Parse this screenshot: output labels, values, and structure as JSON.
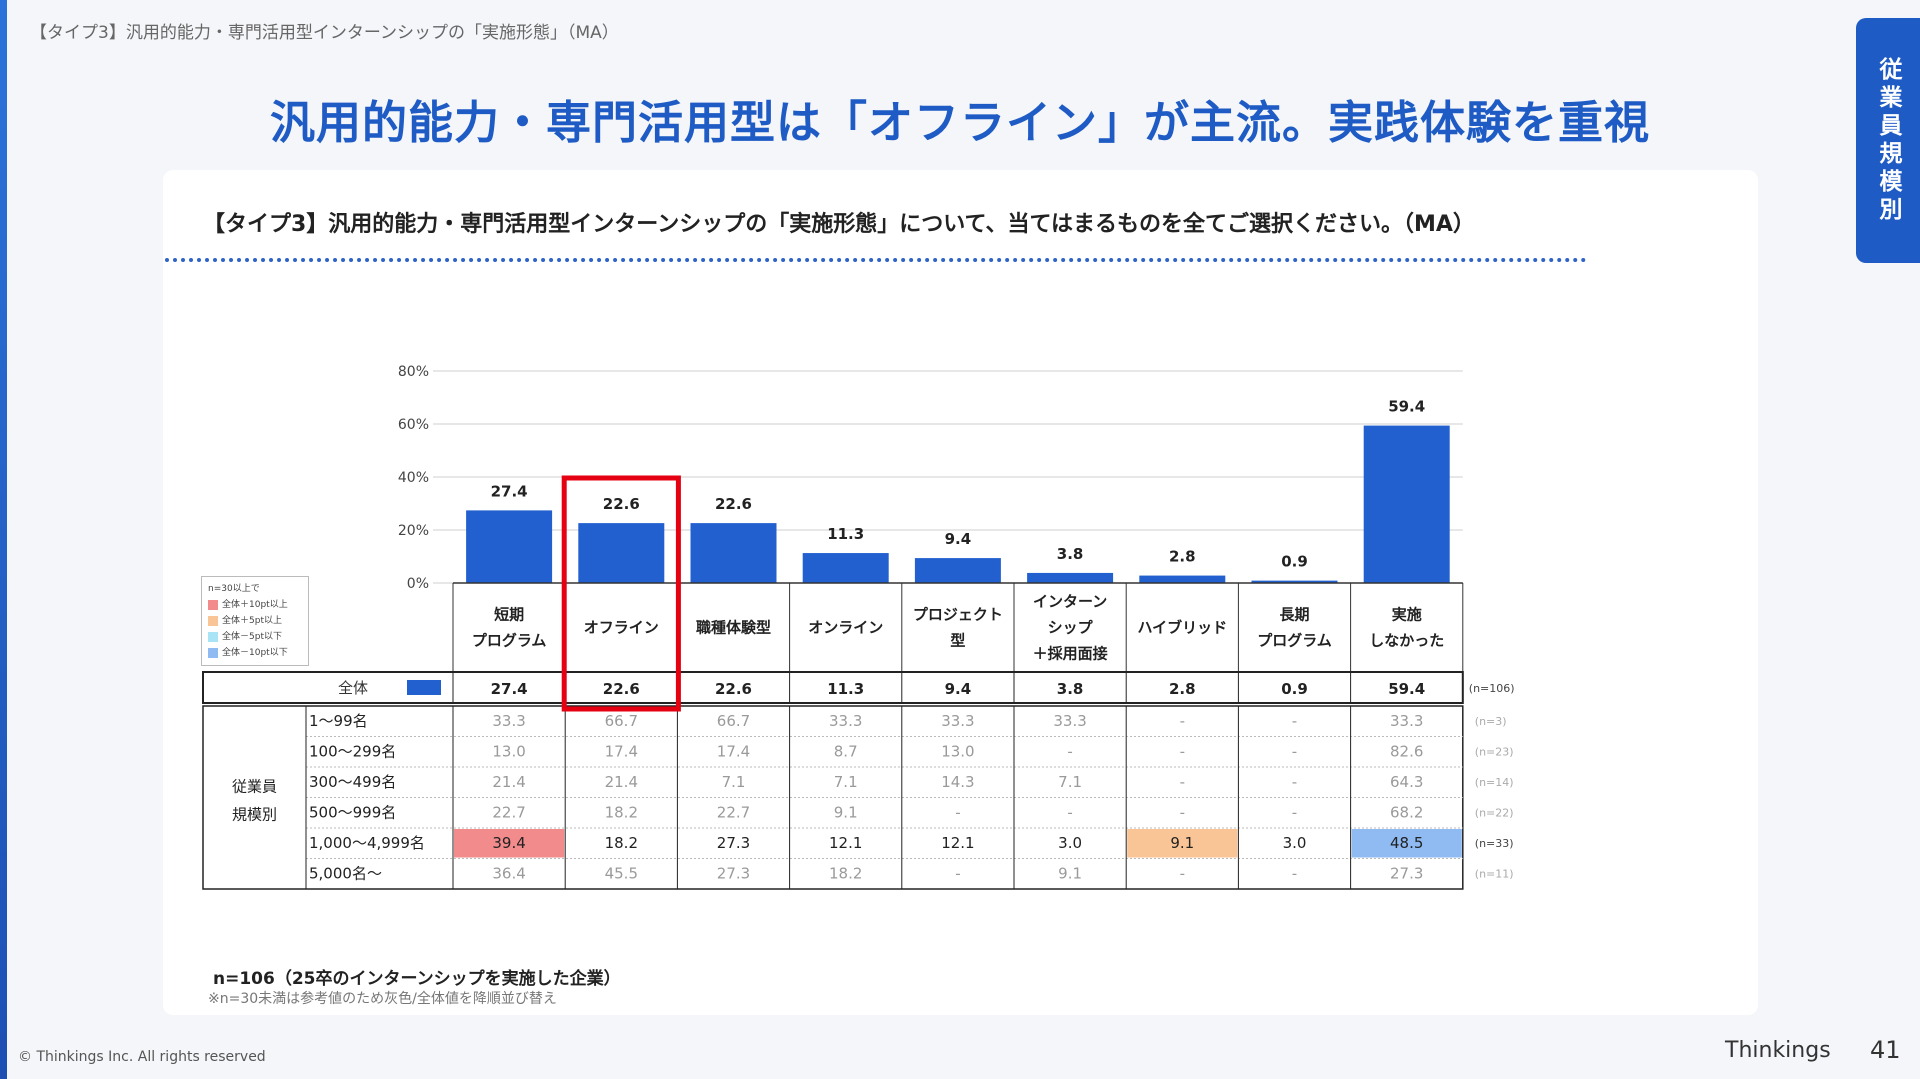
{
  "breadcrumb": "【タイプ3】汎用的能力・専門活用型インターンシップの「実施形態」（MA）",
  "headline": "汎用的能力・専門活用型は「オフライン」が主流。実践体験を重視",
  "side_tab": "従業員規模別",
  "question": "【タイプ3】汎用的能力・専門活用型インターンシップの「実施形態」について、当てはまるものを全てご選択ください。（MA）",
  "legend": {
    "title": "n=30以上で",
    "items": [
      {
        "label": "全体＋10pt以上",
        "color": "#f28b8b"
      },
      {
        "label": "全体＋5pt以上",
        "color": "#f9c596"
      },
      {
        "label": "全体－5pt以下",
        "color": "#a8e4f5"
      },
      {
        "label": "全体－10pt以下",
        "color": "#8fbaf2"
      }
    ]
  },
  "chart_data": {
    "type": "bar",
    "categories": [
      [
        "短期",
        "プログラム"
      ],
      [
        "オフライン"
      ],
      [
        "職種体験型"
      ],
      [
        "オンライン"
      ],
      [
        "プロジェクト",
        "型"
      ],
      [
        "インターン",
        "シップ",
        "＋採用面接"
      ],
      [
        "ハイブリッド"
      ],
      [
        "長期",
        "プログラム"
      ],
      [
        "実施",
        "しなかった"
      ]
    ],
    "values": [
      27.4,
      22.6,
      22.6,
      11.3,
      9.4,
      3.8,
      2.8,
      0.9,
      59.4
    ],
    "value_labels": [
      "27.4",
      "22.6",
      "22.6",
      "11.3",
      "9.4",
      "3.8",
      "2.8",
      "0.9",
      "59.4"
    ],
    "y_ticks": [
      "0%",
      "20%",
      "40%",
      "60%",
      "80%"
    ],
    "ylim": [
      0,
      80
    ],
    "grid": true,
    "bar_color": "#2260cf",
    "highlight_index": 1,
    "highlight_color": "#e50012"
  },
  "table": {
    "total_row": {
      "label": "全体",
      "values": [
        "27.4",
        "22.6",
        "22.6",
        "11.3",
        "9.4",
        "3.8",
        "2.8",
        "0.9",
        "59.4"
      ],
      "n": "(n=106)"
    },
    "group_label": [
      "従業員",
      "規模別"
    ],
    "rows": [
      {
        "label": "1～99名",
        "n": "(n=3)",
        "ref": true,
        "cells": [
          {
            "v": "33.3"
          },
          {
            "v": "66.7"
          },
          {
            "v": "66.7"
          },
          {
            "v": "33.3"
          },
          {
            "v": "33.3"
          },
          {
            "v": "33.3"
          },
          {
            "v": "-"
          },
          {
            "v": "-"
          },
          {
            "v": "33.3"
          }
        ]
      },
      {
        "label": "100～299名",
        "n": "(n=23)",
        "ref": true,
        "cells": [
          {
            "v": "13.0"
          },
          {
            "v": "17.4"
          },
          {
            "v": "17.4"
          },
          {
            "v": "8.7"
          },
          {
            "v": "13.0"
          },
          {
            "v": "-"
          },
          {
            "v": "-"
          },
          {
            "v": "-"
          },
          {
            "v": "82.6"
          }
        ]
      },
      {
        "label": "300～499名",
        "n": "(n=14)",
        "ref": true,
        "cells": [
          {
            "v": "21.4"
          },
          {
            "v": "21.4"
          },
          {
            "v": "7.1"
          },
          {
            "v": "7.1"
          },
          {
            "v": "14.3"
          },
          {
            "v": "7.1"
          },
          {
            "v": "-"
          },
          {
            "v": "-"
          },
          {
            "v": "64.3"
          }
        ]
      },
      {
        "label": "500～999名",
        "n": "(n=22)",
        "ref": true,
        "cells": [
          {
            "v": "22.7"
          },
          {
            "v": "18.2"
          },
          {
            "v": "22.7"
          },
          {
            "v": "9.1"
          },
          {
            "v": "-"
          },
          {
            "v": "-"
          },
          {
            "v": "-"
          },
          {
            "v": "-"
          },
          {
            "v": "68.2"
          }
        ]
      },
      {
        "label": "1,000～4,999名",
        "n": "(n=33)",
        "ref": false,
        "cells": [
          {
            "v": "39.4",
            "bg": "#f28b8b"
          },
          {
            "v": "18.2"
          },
          {
            "v": "27.3"
          },
          {
            "v": "12.1"
          },
          {
            "v": "12.1"
          },
          {
            "v": "3.0"
          },
          {
            "v": "9.1",
            "bg": "#f9c596"
          },
          {
            "v": "3.0"
          },
          {
            "v": "48.5",
            "bg": "#8fbaf2"
          }
        ]
      },
      {
        "label": "5,000名～",
        "n": "(n=11)",
        "ref": true,
        "cells": [
          {
            "v": "36.4"
          },
          {
            "v": "45.5"
          },
          {
            "v": "27.3"
          },
          {
            "v": "18.2"
          },
          {
            "v": "-"
          },
          {
            "v": "9.1"
          },
          {
            "v": "-"
          },
          {
            "v": "-"
          },
          {
            "v": "27.3"
          }
        ]
      }
    ]
  },
  "footnote": {
    "n": "n=106（25卒のインターンシップを実施した企業）",
    "note": "※n=30未満は参考値のため灰色/全体値を降順並び替え"
  },
  "copyright": "© Thinkings Inc. All rights reserved",
  "brand": "Thinkings",
  "page_number": "41"
}
